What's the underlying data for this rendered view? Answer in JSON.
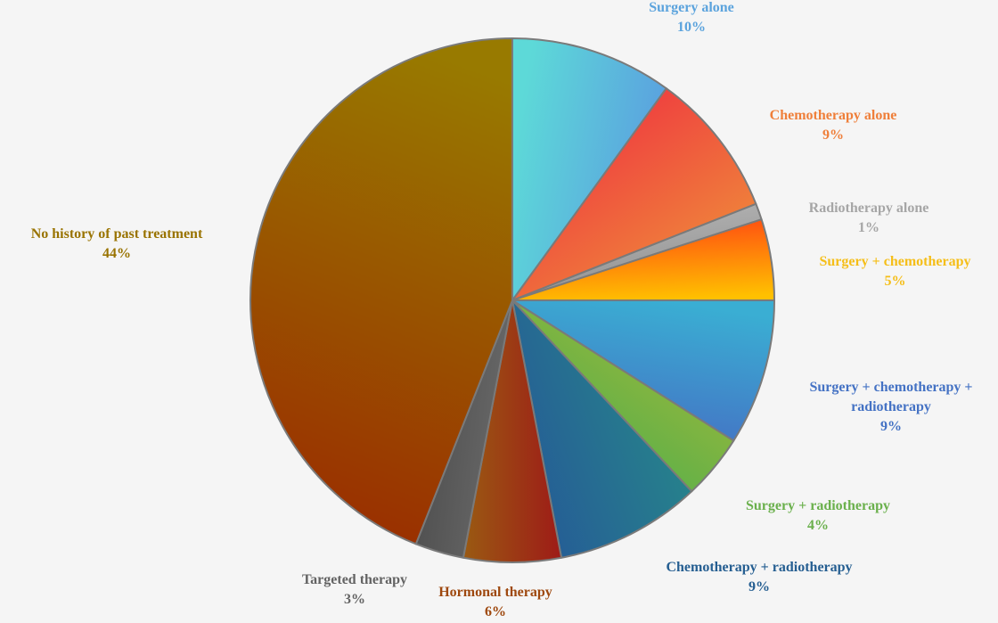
{
  "chart_data": {
    "type": "pie",
    "title": "",
    "start_angle_deg": 0,
    "direction": "clockwise",
    "slices": [
      {
        "label": "Surgery alone",
        "value": 10,
        "pct_label": "10%",
        "color_light": "#5dd9d8",
        "color_dark": "#5a9be0",
        "label_color": "#5ba3dd"
      },
      {
        "label": "Chemotherapy alone",
        "value": 9,
        "pct_label": "9%",
        "color_light": "#ef3340",
        "color_dark": "#ef8b3a",
        "label_color": "#ef7f3a"
      },
      {
        "label": "Radiotherapy alone",
        "value": 1,
        "pct_label": "1%",
        "color_light": "#b5b5b5",
        "color_dark": "#8f8f8f",
        "label_color": "#a6a6a6"
      },
      {
        "label": "Surgery + chemotherapy",
        "value": 5,
        "pct_label": "5%",
        "color_light": "#ff4a12",
        "color_dark": "#ffc000",
        "label_color": "#f5be18"
      },
      {
        "label": "Surgery + chemotherapy + radiotherapy",
        "label_lines": [
          "Surgery + chemotherapy +",
          "radiotherapy"
        ],
        "value": 9,
        "pct_label": "9%",
        "color_light": "#3aaed3",
        "color_dark": "#4472c4",
        "label_color": "#4472c4"
      },
      {
        "label": "Surgery + radiotherapy",
        "value": 4,
        "pct_label": "4%",
        "color_light": "#a1b83a",
        "color_dark": "#4cae4c",
        "label_color": "#6ab04c"
      },
      {
        "label": "Chemotherapy + radiotherapy",
        "value": 9,
        "pct_label": "9%",
        "color_light": "#27888a",
        "color_dark": "#255c96",
        "label_color": "#255e91"
      },
      {
        "label": "Hormonal therapy",
        "value": 6,
        "pct_label": "6%",
        "color_light": "#9e1b17",
        "color_dark": "#9a5a12",
        "label_color": "#9e480e"
      },
      {
        "label": "Targeted therapy",
        "value": 3,
        "pct_label": "3%",
        "color_light": "#6a6a6a",
        "color_dark": "#4d4d4d",
        "label_color": "#636363"
      },
      {
        "label": "No history of past treatment",
        "value": 44,
        "pct_label": "44%",
        "color_light": "#9a2e00",
        "color_dark": "#987a00",
        "label_color": "#997300"
      }
    ]
  }
}
